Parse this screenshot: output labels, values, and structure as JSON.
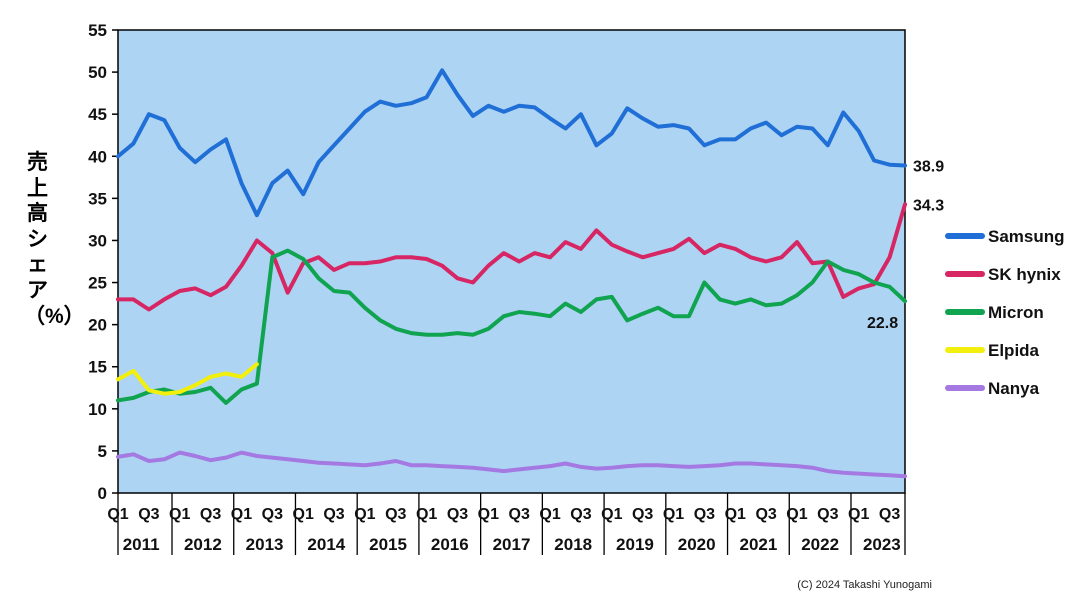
{
  "page": {
    "background": "#ffffff"
  },
  "chart_data": {
    "type": "line",
    "title": "",
    "ylabel": "売上高シェア（%）",
    "xlabel": "",
    "ylim": [
      0,
      55
    ],
    "ytick_step": 5,
    "plot_bg": "#aed4f4",
    "grid": false,
    "legend_position": "right",
    "years": [
      "2011",
      "2012",
      "2013",
      "2014",
      "2015",
      "2016",
      "2017",
      "2018",
      "2019",
      "2020",
      "2021",
      "2022",
      "2023"
    ],
    "quarter_ticks": [
      "Q1",
      "Q3"
    ],
    "quarters_per_year": 4,
    "series": [
      {
        "name": "Samsung",
        "color": "#1f6fd6",
        "values": [
          40.0,
          41.5,
          45.0,
          44.3,
          41.0,
          39.3,
          40.8,
          42.0,
          36.8,
          33.0,
          36.8,
          38.3,
          35.5,
          39.3,
          41.3,
          43.3,
          45.3,
          46.5,
          46.0,
          46.3,
          47.0,
          50.2,
          47.3,
          44.8,
          46.0,
          45.3,
          46.0,
          45.8,
          44.5,
          43.3,
          45.0,
          41.3,
          42.7,
          45.7,
          44.5,
          43.5,
          43.7,
          43.3,
          41.3,
          42.0,
          42.0,
          43.3,
          44.0,
          42.5,
          43.5,
          43.3,
          41.3,
          45.2,
          43.0,
          39.5,
          39.0,
          38.9
        ]
      },
      {
        "name": "SK hynix",
        "color": "#d62663",
        "values": [
          23.0,
          23.0,
          21.8,
          23.0,
          24.0,
          24.3,
          23.5,
          24.5,
          27.0,
          30.0,
          28.5,
          23.8,
          27.3,
          28.0,
          26.5,
          27.3,
          27.3,
          27.5,
          28.0,
          28.0,
          27.8,
          27.0,
          25.5,
          25.0,
          27.0,
          28.5,
          27.5,
          28.5,
          28.0,
          29.8,
          29.0,
          31.2,
          29.5,
          28.7,
          28.0,
          28.5,
          29.0,
          30.2,
          28.5,
          29.5,
          29.0,
          28.0,
          27.5,
          28.0,
          29.8,
          27.3,
          27.5,
          23.3,
          24.3,
          24.8,
          28.0,
          34.3
        ]
      },
      {
        "name": "Micron",
        "color": "#10a350",
        "values": [
          11.0,
          11.3,
          12.0,
          12.3,
          11.8,
          12.0,
          12.5,
          10.7,
          12.3,
          13.0,
          28.0,
          28.8,
          27.8,
          25.5,
          24.0,
          23.8,
          22.0,
          20.5,
          19.5,
          19.0,
          18.8,
          18.8,
          19.0,
          18.8,
          19.5,
          21.0,
          21.5,
          21.3,
          21.0,
          22.5,
          21.5,
          23.0,
          23.3,
          20.5,
          21.3,
          22.0,
          21.0,
          21.0,
          25.0,
          23.0,
          22.5,
          23.0,
          22.3,
          22.5,
          23.5,
          25.0,
          27.5,
          26.5,
          26.0,
          25.0,
          24.5,
          22.8
        ]
      },
      {
        "name": "Elpida",
        "color": "#f3ef0c",
        "values": [
          13.5,
          14.5,
          12.2,
          11.8,
          12.0,
          12.8,
          13.8,
          14.2,
          13.8,
          15.3,
          null,
          null,
          null,
          null,
          null,
          null,
          null,
          null,
          null,
          null,
          null,
          null,
          null,
          null,
          null,
          null,
          null,
          null,
          null,
          null,
          null,
          null,
          null,
          null,
          null,
          null,
          null,
          null,
          null,
          null,
          null,
          null,
          null,
          null,
          null,
          null,
          null,
          null,
          null,
          null,
          null,
          null
        ]
      },
      {
        "name": "Nanya",
        "color": "#a47ae2",
        "values": [
          4.3,
          4.6,
          3.8,
          4.0,
          4.8,
          4.4,
          3.9,
          4.2,
          4.8,
          4.4,
          4.2,
          4.0,
          3.8,
          3.6,
          3.5,
          3.4,
          3.3,
          3.5,
          3.8,
          3.3,
          3.3,
          3.2,
          3.1,
          3.0,
          2.8,
          2.6,
          2.8,
          3.0,
          3.2,
          3.5,
          3.1,
          2.9,
          3.0,
          3.2,
          3.3,
          3.3,
          3.2,
          3.1,
          3.2,
          3.3,
          3.5,
          3.5,
          3.4,
          3.3,
          3.2,
          3.0,
          2.6,
          2.4,
          2.3,
          2.2,
          2.1,
          2.0
        ]
      }
    ],
    "annotations": [
      {
        "series": "Samsung",
        "text": "38.9"
      },
      {
        "series": "SK hynix",
        "text": "34.3"
      },
      {
        "series": "Micron",
        "text": "22.8"
      }
    ],
    "copyright": "(C) 2024 Takashi Yunogami"
  }
}
